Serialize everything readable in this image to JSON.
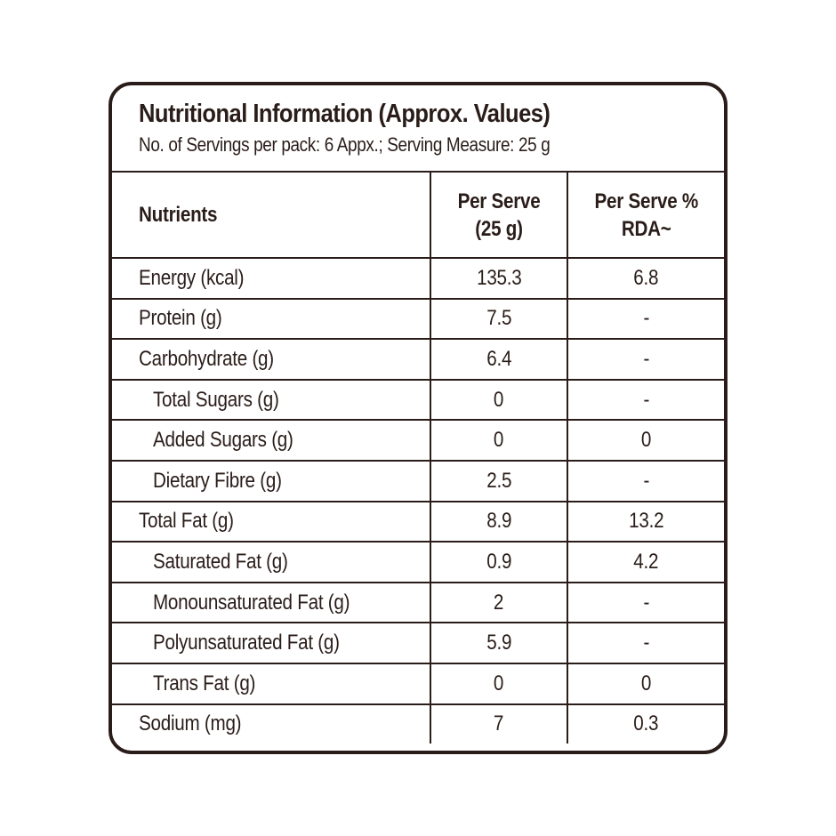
{
  "label": {
    "title": "Nutritional Information (Approx. Values)",
    "subtitle": "No. of Servings per pack: 6 Appx.; Serving Measure: 25 g"
  },
  "table": {
    "headers": {
      "nutrients": "Nutrients",
      "per_serve_line1": "Per Serve",
      "per_serve_line2": "(25 g)",
      "rda_line1": "Per Serve %",
      "rda_line2": "RDA~"
    },
    "rows": [
      {
        "nutrient": "Energy (kcal)",
        "per_serve": "135.3",
        "rda": "6.8",
        "sub": false
      },
      {
        "nutrient": "Protein (g)",
        "per_serve": "7.5",
        "rda": "-",
        "sub": false
      },
      {
        "nutrient": "Carbohydrate (g)",
        "per_serve": "6.4",
        "rda": "-",
        "sub": false
      },
      {
        "nutrient": "Total Sugars (g)",
        "per_serve": "0",
        "rda": "-",
        "sub": true
      },
      {
        "nutrient": "Added Sugars (g)",
        "per_serve": "0",
        "rda": "0",
        "sub": true
      },
      {
        "nutrient": "Dietary Fibre (g)",
        "per_serve": "2.5",
        "rda": "-",
        "sub": true
      },
      {
        "nutrient": "Total Fat (g)",
        "per_serve": "8.9",
        "rda": "13.2",
        "sub": false
      },
      {
        "nutrient": "Saturated Fat (g)",
        "per_serve": "0.9",
        "rda": "4.2",
        "sub": true
      },
      {
        "nutrient": "Monounsaturated Fat (g)",
        "per_serve": "2",
        "rda": "-",
        "sub": true
      },
      {
        "nutrient": "Polyunsaturated Fat (g)",
        "per_serve": "5.9",
        "rda": "-",
        "sub": true
      },
      {
        "nutrient": "Trans Fat (g)",
        "per_serve": "0",
        "rda": "0",
        "sub": true
      },
      {
        "nutrient": "Sodium (mg)",
        "per_serve": "7",
        "rda": "0.3",
        "sub": false
      }
    ]
  },
  "colors": {
    "ink": "#2a1d19",
    "background": "#ffffff"
  }
}
